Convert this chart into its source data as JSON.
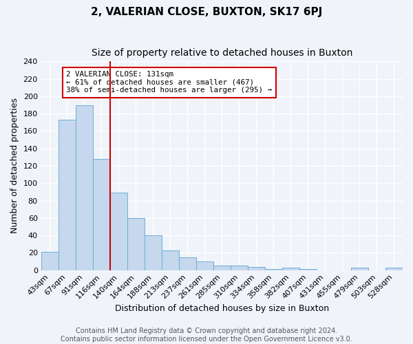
{
  "title": "2, VALERIAN CLOSE, BUXTON, SK17 6PJ",
  "subtitle": "Size of property relative to detached houses in Buxton",
  "xlabel": "Distribution of detached houses by size in Buxton",
  "ylabel": "Number of detached properties",
  "bin_labels": [
    "43sqm",
    "67sqm",
    "91sqm",
    "116sqm",
    "140sqm",
    "164sqm",
    "188sqm",
    "213sqm",
    "237sqm",
    "261sqm",
    "285sqm",
    "310sqm",
    "334sqm",
    "358sqm",
    "382sqm",
    "407sqm",
    "431sqm",
    "455sqm",
    "479sqm",
    "503sqm",
    "528sqm"
  ],
  "bar_values": [
    21,
    173,
    190,
    128,
    89,
    60,
    40,
    23,
    15,
    10,
    5,
    5,
    4,
    1,
    3,
    1,
    0,
    0,
    3,
    0,
    3
  ],
  "ylim": [
    0,
    240
  ],
  "yticks": [
    0,
    20,
    40,
    60,
    80,
    100,
    120,
    140,
    160,
    180,
    200,
    220,
    240
  ],
  "bar_color": "#c5d8ed",
  "bar_edge_color": "#6baed6",
  "vline_x": 3.5,
  "vline_color": "#cc0000",
  "annotation_text": "2 VALERIAN CLOSE: 131sqm\n← 61% of detached houses are smaller (467)\n38% of semi-detached houses are larger (295) →",
  "annotation_box_color": "#ffffff",
  "annotation_box_edge_color": "#cc0000",
  "footer_line1": "Contains HM Land Registry data © Crown copyright and database right 2024.",
  "footer_line2": "Contains public sector information licensed under the Open Government Licence v3.0.",
  "background_color": "#f0f4fa",
  "grid_color": "#ffffff",
  "title_fontsize": 11,
  "subtitle_fontsize": 10,
  "label_fontsize": 9,
  "tick_fontsize": 8,
  "footer_fontsize": 7
}
